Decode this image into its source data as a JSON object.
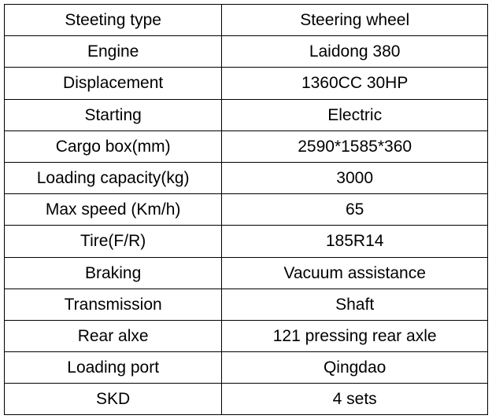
{
  "spec_table": {
    "rows": [
      {
        "label": "Steeting type",
        "value": "Steering wheel"
      },
      {
        "label": "Engine",
        "value": "Laidong 380"
      },
      {
        "label": "Displacement",
        "value": "1360CC 30HP"
      },
      {
        "label": "Starting",
        "value": "Electric"
      },
      {
        "label": "Cargo box(mm)",
        "value": "2590*1585*360"
      },
      {
        "label": "Loading capacity(kg)",
        "value": "3000"
      },
      {
        "label": "Max speed (Km/h)",
        "value": "65"
      },
      {
        "label": "Tire(F/R)",
        "value": "185R14"
      },
      {
        "label": "Braking",
        "value": "Vacuum assistance"
      },
      {
        "label": "Transmission",
        "value": "Shaft"
      },
      {
        "label": "Rear alxe",
        "value": "121 pressing rear axle"
      },
      {
        "label": "Loading port",
        "value": "Qingdao"
      },
      {
        "label": "SKD",
        "value": "4 sets"
      }
    ],
    "style": {
      "border_color": "#000000",
      "background_color": "#ffffff",
      "text_color": "#000000",
      "font_size": 21,
      "columns": [
        "label",
        "value"
      ],
      "col_widths_pct": [
        45,
        55
      ],
      "text_align": "center"
    }
  }
}
